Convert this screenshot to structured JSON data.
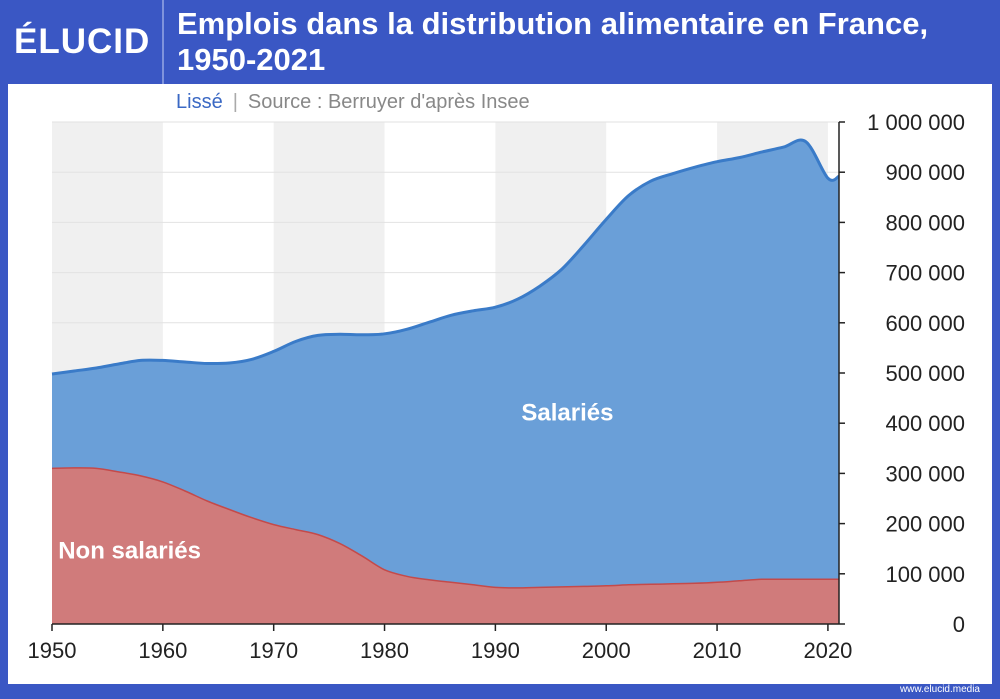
{
  "header": {
    "logo_text": "ÉLUCID",
    "title": "Emplois dans la distribution alimentaire en France, 1950-2021"
  },
  "subtitle": {
    "note": "Lissé",
    "source": "Source : Berruyer d'après Insee"
  },
  "footer": {
    "site": "www.elucid.media"
  },
  "colors": {
    "background": "#3a57c4",
    "salaries": "#6a9fd8",
    "salaries_line": "#3a7bc8",
    "non_salaries": "#d07b7b",
    "non_salaries_line": "#c44a4a",
    "band": "#f0f0f0"
  },
  "chart_data": {
    "type": "area",
    "stacked": true,
    "x": [
      1950,
      1952,
      1954,
      1956,
      1958,
      1960,
      1962,
      1964,
      1966,
      1968,
      1970,
      1972,
      1974,
      1976,
      1978,
      1980,
      1982,
      1984,
      1986,
      1988,
      1990,
      1992,
      1994,
      1996,
      1998,
      2000,
      2002,
      2004,
      2006,
      2008,
      2010,
      2012,
      2014,
      2016,
      2018,
      2020,
      2021
    ],
    "series": [
      {
        "name": "Non salariés",
        "values": [
          310000,
          311000,
          310000,
          303000,
          295000,
          283000,
          265000,
          245000,
          228000,
          212000,
          198000,
          188000,
          178000,
          160000,
          135000,
          108000,
          95000,
          88000,
          83000,
          78000,
          73000,
          72000,
          73000,
          74000,
          75000,
          76000,
          78000,
          79000,
          80000,
          81000,
          83000,
          86000,
          89000,
          89000,
          89000,
          89000,
          89000
        ]
      },
      {
        "name": "Salariés",
        "values": [
          188000,
          193000,
          200000,
          215000,
          230000,
          242000,
          257000,
          274000,
          292000,
          315000,
          345000,
          375000,
          397000,
          417000,
          441000,
          470000,
          492000,
          513000,
          532000,
          546000,
          558000,
          575000,
          600000,
          633000,
          680000,
          730000,
          775000,
          803000,
          817000,
          829000,
          838000,
          843000,
          851000,
          861000,
          872000,
          799000,
          803000
        ]
      }
    ],
    "totals": [
      498000,
      504000,
      510000,
      518000,
      525000,
      525000,
      522000,
      519000,
      520000,
      527000,
      543000,
      563000,
      575000,
      577000,
      576000,
      578000,
      587000,
      601000,
      615000,
      624000,
      631000,
      647000,
      673000,
      707000,
      755000,
      806000,
      853000,
      882000,
      897000,
      910000,
      921000,
      929000,
      940000,
      950000,
      961000,
      888000,
      892000
    ],
    "xlim": [
      1950,
      2021
    ],
    "ylim": [
      0,
      1000000
    ],
    "xticks": [
      "1950",
      "1960",
      "1970",
      "1980",
      "1990",
      "2000",
      "2010",
      "2020"
    ],
    "xtick_values": [
      1950,
      1960,
      1970,
      1980,
      1990,
      2000,
      2010,
      2020
    ],
    "yticks": [
      "0",
      "100 000",
      "200 000",
      "300 000",
      "400 000",
      "500 000",
      "600 000",
      "700 000",
      "800 000",
      "900 000",
      "1 000 000"
    ],
    "ytick_values": [
      0,
      100000,
      200000,
      300000,
      400000,
      500000,
      600000,
      700000,
      800000,
      900000,
      1000000
    ],
    "area_labels": {
      "salaries": "Salariés",
      "non_salaries": "Non salariés"
    },
    "grid": true,
    "y_axis_side": "right",
    "legend": "inline labels"
  }
}
